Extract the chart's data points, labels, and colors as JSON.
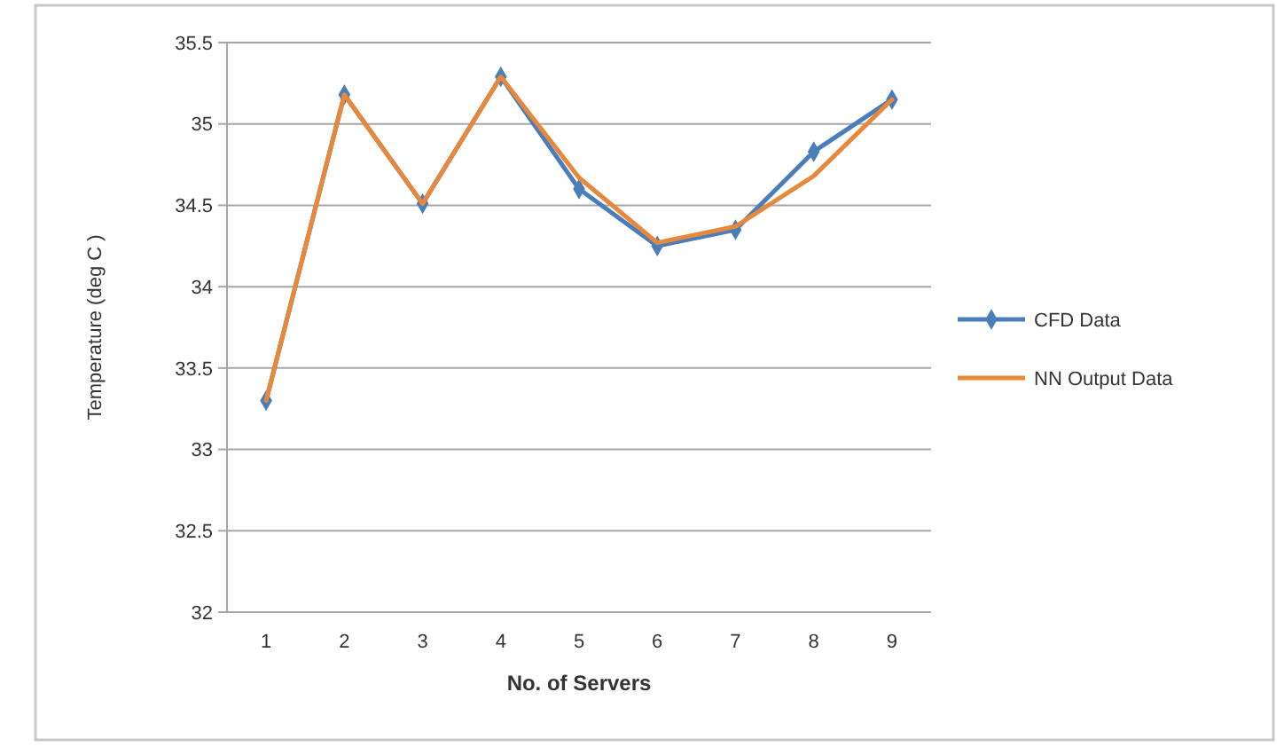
{
  "chart_data": {
    "type": "line",
    "categories": [
      "1",
      "2",
      "3",
      "4",
      "5",
      "6",
      "7",
      "8",
      "9"
    ],
    "xlabel": "No. of Servers",
    "ylabel": "Temperature (deg C )",
    "series": [
      {
        "name": "CFD Data",
        "color": "#4a7ebb",
        "marker": "diamond",
        "values": [
          33.3,
          35.18,
          34.51,
          35.29,
          34.6,
          34.25,
          34.35,
          34.83,
          35.15
        ]
      },
      {
        "name": "NN Output Data",
        "color": "#e8883a",
        "marker": "none",
        "values": [
          33.3,
          35.18,
          34.51,
          35.29,
          34.67,
          34.27,
          34.37,
          34.68,
          35.15
        ]
      }
    ],
    "ylim": [
      32,
      35.5
    ],
    "yticks": [
      32,
      32.5,
      33,
      33.5,
      34,
      34.5,
      35,
      35.5
    ],
    "grid": "y",
    "legend": "right"
  }
}
